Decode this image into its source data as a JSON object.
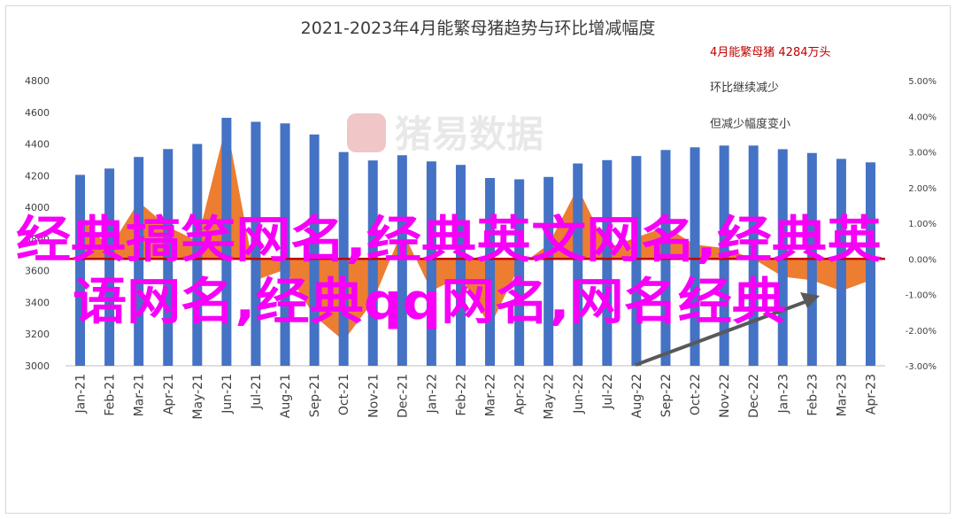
{
  "chart_data": {
    "type": "bar",
    "title": "2021-2023年4月能繁母猪趋势与环比增减幅度",
    "categories": [
      "Jan-21",
      "Feb-21",
      "Mar-21",
      "Apr-21",
      "May-21",
      "Jun-21",
      "Jul-21",
      "Aug-21",
      "Sep-21",
      "Oct-21",
      "Nov-21",
      "Dec-21",
      "Jan-22",
      "Feb-22",
      "Mar-22",
      "Apr-22",
      "May-22",
      "Jun-22",
      "Jul-22",
      "Aug-22",
      "Sep-22",
      "Oct-22",
      "Nov-22",
      "Dec-22",
      "Jan-23",
      "Feb-23",
      "Mar-23",
      "Apr-23"
    ],
    "series": [
      {
        "kind": "bar",
        "axis": "left",
        "values": [
          4205,
          4245,
          4318,
          4368,
          4400,
          4565,
          4540,
          4530,
          4460,
          4349,
          4296,
          4329,
          4290,
          4268,
          4185,
          4177,
          4192,
          4277,
          4298,
          4324,
          4362,
          4379,
          4390,
          4390,
          4367,
          4343,
          4306,
          4284
        ]
      },
      {
        "kind": "area",
        "axis": "right",
        "values": [
          1.2,
          0.3,
          1.6,
          0.9,
          0.5,
          3.8,
          -0.6,
          -0.3,
          -1.6,
          -2.3,
          -1.2,
          0.8,
          -0.9,
          -0.5,
          -1.9,
          -0.2,
          0.4,
          2.0,
          0.3,
          0.6,
          0.9,
          0.4,
          0.3,
          0.0,
          -0.5,
          -0.6,
          -0.9,
          -0.6
        ]
      }
    ],
    "yaxis_left": {
      "min": 3000,
      "max": 4800,
      "ticks": [
        "3000",
        "3200",
        "3400",
        "3600",
        "3800",
        "4000",
        "4200",
        "4400",
        "4600",
        "4800"
      ]
    },
    "yaxis_right": {
      "min": -3.0,
      "max": 5.0,
      "ticks": [
        "-3.00%",
        "-2.00%",
        "-1.00%",
        "0.00%",
        "1.00%",
        "2.00%",
        "3.00%",
        "4.00%",
        "5.00%"
      ]
    },
    "annotations": [
      "4月能繁母猪 4284万头",
      "环比继续减少",
      "但减少幅度变小"
    ],
    "watermark": "猪易数据",
    "overlay_caption": [
      "经典搞笑网名,经典英文网名,经典英",
      "语网名,经典qq网名,网名经典"
    ],
    "colors": {
      "bar": "#4472c4",
      "area": "#ed7d31",
      "zero_line": "#c00000",
      "annotation": "#c00000",
      "arrow": "#595959",
      "overlay": "#f700f7"
    }
  }
}
